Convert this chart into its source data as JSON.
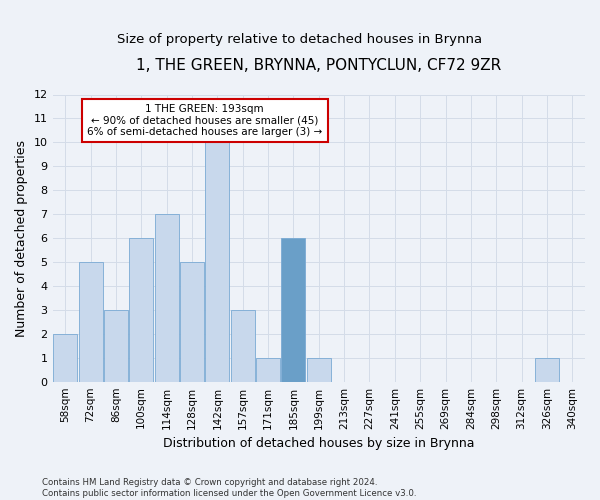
{
  "title": "1, THE GREEN, BRYNNA, PONTYCLUN, CF72 9ZR",
  "subtitle": "Size of property relative to detached houses in Brynna",
  "xlabel": "Distribution of detached houses by size in Brynna",
  "ylabel": "Number of detached properties",
  "footer_line1": "Contains HM Land Registry data © Crown copyright and database right 2024.",
  "footer_line2": "Contains public sector information licensed under the Open Government Licence v3.0.",
  "bin_labels": [
    "58sqm",
    "72sqm",
    "86sqm",
    "100sqm",
    "114sqm",
    "128sqm",
    "142sqm",
    "157sqm",
    "171sqm",
    "185sqm",
    "199sqm",
    "213sqm",
    "227sqm",
    "241sqm",
    "255sqm",
    "269sqm",
    "284sqm",
    "298sqm",
    "312sqm",
    "326sqm",
    "340sqm"
  ],
  "bar_values": [
    2,
    5,
    3,
    6,
    7,
    5,
    10,
    3,
    1,
    6,
    1,
    0,
    0,
    0,
    0,
    0,
    0,
    0,
    0,
    1,
    0
  ],
  "highlighted_bin_index": 9,
  "bar_color_normal": "#c8d8ec",
  "bar_color_highlight": "#6a9fc8",
  "bar_edge_color": "#7aaad4",
  "grid_color": "#d4dce8",
  "background_color": "#eef2f8",
  "annotation_text": "1 THE GREEN: 193sqm\n← 90% of detached houses are smaller (45)\n6% of semi-detached houses are larger (3) →",
  "annotation_box_color": "white",
  "annotation_box_edge_color": "#cc0000",
  "ylim": [
    0,
    12
  ],
  "yticks": [
    0,
    1,
    2,
    3,
    4,
    5,
    6,
    7,
    8,
    9,
    10,
    11,
    12
  ],
  "title_fontsize": 11,
  "subtitle_fontsize": 9.5,
  "tick_fontsize": 7.5,
  "ylabel_fontsize": 9,
  "xlabel_fontsize": 9,
  "annotation_fontsize": 7.5
}
